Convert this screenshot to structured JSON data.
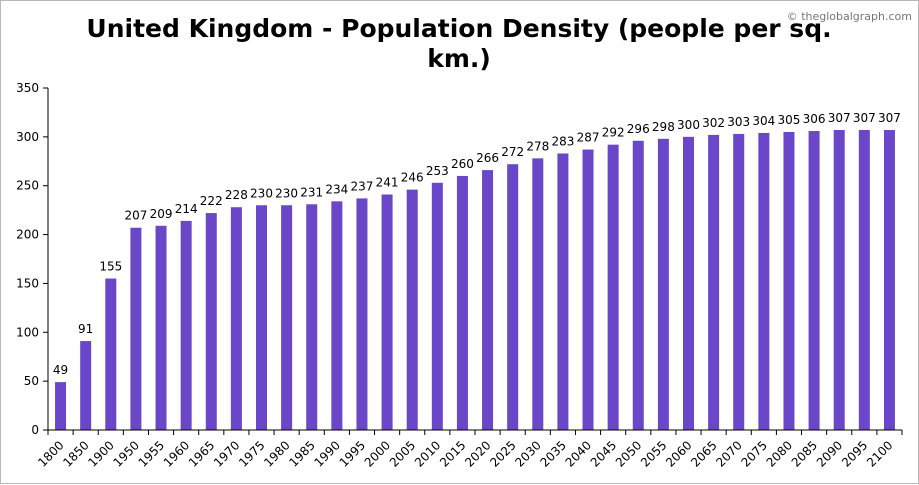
{
  "watermark": "© theglobalgraph.com",
  "chart_data": {
    "type": "bar",
    "title_lines": [
      "United Kingdom - Population Density (people per sq.",
      "km.)"
    ],
    "xlabel": "",
    "ylabel": "",
    "ylim": [
      0,
      350
    ],
    "yticks": [
      0,
      50,
      100,
      150,
      200,
      250,
      300,
      350
    ],
    "grid": false,
    "legend": "none",
    "bar_color": "#6a46c8",
    "categories": [
      "1800",
      "1850",
      "1900",
      "1950",
      "1955",
      "1960",
      "1965",
      "1970",
      "1975",
      "1980",
      "1985",
      "1990",
      "1995",
      "2000",
      "2005",
      "2010",
      "2015",
      "2020",
      "2025",
      "2030",
      "2035",
      "2040",
      "2045",
      "2050",
      "2055",
      "2060",
      "2065",
      "2070",
      "2075",
      "2080",
      "2085",
      "2090",
      "2095",
      "2100"
    ],
    "values": [
      49,
      91,
      155,
      207,
      209,
      214,
      222,
      228,
      230,
      230,
      231,
      234,
      237,
      241,
      246,
      253,
      260,
      266,
      272,
      278,
      283,
      287,
      292,
      296,
      298,
      300,
      302,
      303,
      304,
      305,
      306,
      307,
      307,
      307
    ]
  }
}
